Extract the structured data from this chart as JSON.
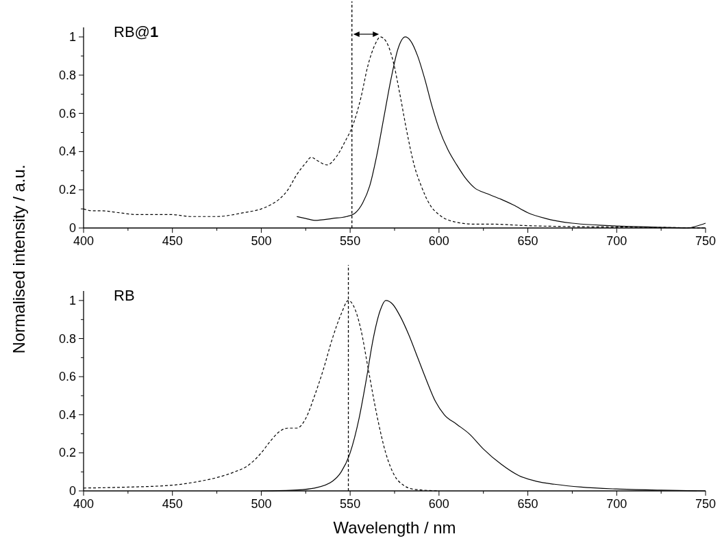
{
  "chart_data": [
    {
      "type": "line",
      "ylabel": "Normalised intensity / a.u.",
      "annotations": [
        "RB@1"
      ],
      "xlim": [
        400,
        750
      ],
      "ylim": [
        0,
        1.05
      ],
      "xticks": [
        400,
        {
          "value": 425,
          "label": null
        },
        450,
        {
          "value": 475,
          "label": null
        },
        500,
        {
          "value": 525,
          "label": null
        },
        550,
        {
          "value": 575,
          "label": null
        },
        600,
        {
          "value": 625,
          "label": null
        },
        650,
        {
          "value": 675,
          "label": null
        },
        700,
        {
          "value": 725,
          "label": null
        },
        750
      ],
      "yticks": [
        0,
        {
          "value": 0.1,
          "label": null
        },
        0.2,
        {
          "value": 0.3,
          "label": null
        },
        0.4,
        {
          "value": 0.5,
          "label": null
        },
        0.6,
        {
          "value": 0.7,
          "label": null
        },
        0.8,
        {
          "value": 0.9,
          "label": null
        },
        1
      ],
      "ref_lines": [
        {
          "axis": "x",
          "value": 551,
          "line_style": "dashed",
          "color": "#000000"
        }
      ],
      "series": [
        {
          "color": "#000000",
          "line_style": "dashed",
          "x": [
            400,
            405,
            410,
            420,
            430,
            440,
            450,
            460,
            475,
            490,
            500,
            505,
            510,
            515,
            520,
            525,
            528,
            532,
            537,
            542,
            547,
            552,
            556,
            560,
            564,
            567,
            570,
            574,
            578,
            582,
            586,
            590,
            595,
            600,
            610,
            620,
            630,
            650,
            670,
            700,
            725,
            750
          ],
          "values": [
            0.1,
            0.09,
            0.09,
            0.08,
            0.07,
            0.07,
            0.07,
            0.06,
            0.06,
            0.08,
            0.1,
            0.12,
            0.15,
            0.2,
            0.28,
            0.34,
            0.37,
            0.35,
            0.33,
            0.37,
            0.45,
            0.55,
            0.68,
            0.85,
            0.96,
            1.0,
            0.98,
            0.88,
            0.7,
            0.5,
            0.33,
            0.22,
            0.12,
            0.07,
            0.03,
            0.02,
            0.02,
            0.012,
            0.008,
            0.005,
            0.003,
            0.0
          ]
        },
        {
          "color": "#000000",
          "line_style": "solid",
          "x": [
            520,
            525,
            530,
            540,
            548,
            553,
            557,
            561,
            565,
            569,
            573,
            577,
            581,
            584,
            588,
            592,
            596,
            600,
            605,
            610,
            615,
            620,
            627,
            635,
            642,
            650,
            660,
            675,
            690,
            700,
            720,
            740,
            745,
            750
          ],
          "values": [
            0.06,
            0.05,
            0.04,
            0.05,
            0.06,
            0.08,
            0.13,
            0.22,
            0.38,
            0.58,
            0.78,
            0.94,
            1.0,
            0.98,
            0.9,
            0.78,
            0.64,
            0.52,
            0.41,
            0.33,
            0.26,
            0.21,
            0.18,
            0.15,
            0.12,
            0.08,
            0.05,
            0.025,
            0.015,
            0.01,
            0.005,
            0.0,
            0.01,
            0.025
          ]
        }
      ]
    },
    {
      "type": "line",
      "xlabel": "Wavelength / nm",
      "annotations": [
        "RB"
      ],
      "xlim": [
        400,
        750
      ],
      "ylim": [
        0,
        1.05
      ],
      "xticks": [
        400,
        {
          "value": 425,
          "label": null
        },
        450,
        {
          "value": 475,
          "label": null
        },
        500,
        {
          "value": 525,
          "label": null
        },
        550,
        {
          "value": 575,
          "label": null
        },
        600,
        {
          "value": 625,
          "label": null
        },
        650,
        {
          "value": 675,
          "label": null
        },
        700,
        {
          "value": 725,
          "label": null
        },
        750
      ],
      "yticks": [
        0,
        {
          "value": 0.1,
          "label": null
        },
        0.2,
        {
          "value": 0.3,
          "label": null
        },
        0.4,
        {
          "value": 0.5,
          "label": null
        },
        0.6,
        {
          "value": 0.7,
          "label": null
        },
        0.8,
        {
          "value": 0.9,
          "label": null
        },
        1
      ],
      "ref_lines": [
        {
          "axis": "x",
          "value": 549,
          "line_style": "dashed",
          "color": "#000000"
        }
      ],
      "series": [
        {
          "color": "#000000",
          "line_style": "dashed",
          "x": [
            400,
            425,
            450,
            465,
            475,
            485,
            492,
            500,
            505,
            510,
            515,
            520,
            525,
            530,
            535,
            540,
            545,
            549,
            552,
            556,
            560,
            565,
            570,
            575,
            580,
            585,
            590,
            600
          ],
          "values": [
            0.015,
            0.02,
            0.03,
            0.05,
            0.07,
            0.1,
            0.13,
            0.2,
            0.26,
            0.31,
            0.33,
            0.33,
            0.38,
            0.5,
            0.64,
            0.8,
            0.93,
            1.0,
            0.97,
            0.85,
            0.65,
            0.4,
            0.2,
            0.08,
            0.03,
            0.01,
            0.005,
            0.0
          ]
        },
        {
          "color": "#000000",
          "line_style": "solid",
          "x": [
            500,
            520,
            530,
            540,
            545,
            550,
            555,
            559,
            563,
            567,
            570,
            574,
            578,
            583,
            588,
            593,
            598,
            603,
            610,
            617,
            625,
            635,
            645,
            655,
            665,
            680,
            700,
            725,
            750
          ],
          "values": [
            0.0,
            0.005,
            0.015,
            0.05,
            0.1,
            0.2,
            0.38,
            0.58,
            0.8,
            0.95,
            1.0,
            0.98,
            0.92,
            0.82,
            0.7,
            0.58,
            0.47,
            0.4,
            0.35,
            0.3,
            0.22,
            0.14,
            0.08,
            0.05,
            0.035,
            0.02,
            0.01,
            0.004,
            0.0
          ]
        }
      ]
    }
  ]
}
